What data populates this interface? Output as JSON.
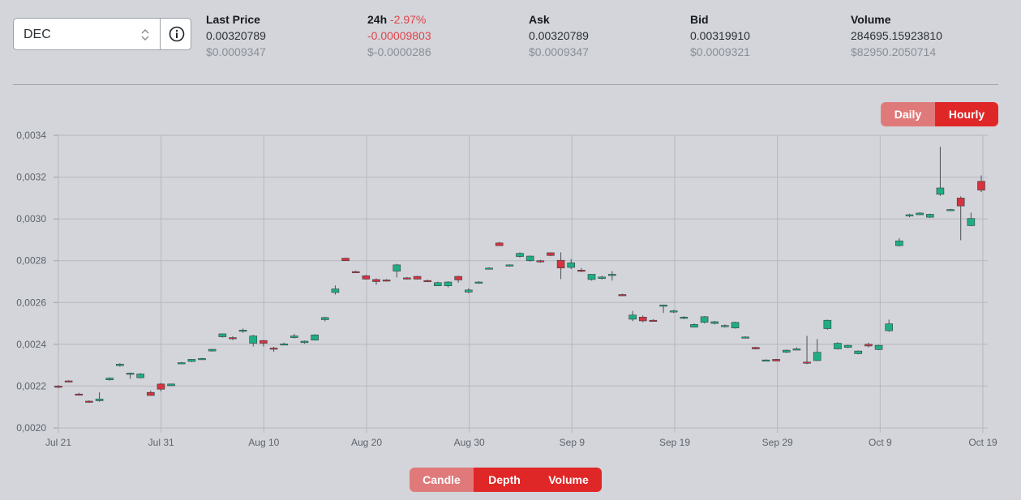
{
  "selector": {
    "value": "DEC"
  },
  "stats": {
    "last_price": {
      "label": "Last Price",
      "value": "0.00320789",
      "usd": "$0.0009347"
    },
    "change_24h": {
      "label": "24h",
      "pct": "-2.97%",
      "value": "-0.00009803",
      "usd": "$-0.0000286"
    },
    "ask": {
      "label": "Ask",
      "value": "0.00320789",
      "usd": "$0.0009347"
    },
    "bid": {
      "label": "Bid",
      "value": "0.00319910",
      "usd": "$0.0009321"
    },
    "volume": {
      "label": "Volume",
      "value": "284695.15923810",
      "usd": "$82950.2050714"
    }
  },
  "interval_toggle": {
    "daily": "Daily",
    "hourly": "Hourly"
  },
  "view_toggle": {
    "candle": "Candle",
    "depth": "Depth",
    "volume": "Volume"
  },
  "colors": {
    "up": "#1fae81",
    "down": "#d6323f",
    "accent": "#e02727",
    "accent_off": "#e07a7a"
  },
  "chart_data": {
    "type": "candlestick",
    "grid": true,
    "ylim": [
      0.002,
      0.0034
    ],
    "yticks": [
      "0,0020",
      "0,0022",
      "0,0024",
      "0,0026",
      "0,0028",
      "0,0030",
      "0,0032",
      "0,0034"
    ],
    "xticks": [
      "Jul 21",
      "Jul 31",
      "Aug 10",
      "Aug 20",
      "Aug 30",
      "Sep 9",
      "Sep 19",
      "Sep 29",
      "Oct 9",
      "Oct 19"
    ],
    "x_start": "Jul 21",
    "candles": [
      {
        "o": 0.0022,
        "h": 0.002205,
        "l": 0.00219,
        "c": 0.002195
      },
      {
        "o": 0.002225,
        "h": 0.002228,
        "l": 0.002218,
        "c": 0.00222
      },
      {
        "o": 0.002162,
        "h": 0.002168,
        "l": 0.002158,
        "c": 0.00216
      },
      {
        "o": 0.002128,
        "h": 0.002132,
        "l": 0.00212,
        "c": 0.002125
      },
      {
        "o": 0.00213,
        "h": 0.00217,
        "l": 0.002125,
        "c": 0.002138
      },
      {
        "o": 0.00223,
        "h": 0.002242,
        "l": 0.002226,
        "c": 0.002238
      },
      {
        "o": 0.002298,
        "h": 0.00231,
        "l": 0.002293,
        "c": 0.002305
      },
      {
        "o": 0.002258,
        "h": 0.002265,
        "l": 0.002235,
        "c": 0.002262
      },
      {
        "o": 0.00224,
        "h": 0.002262,
        "l": 0.002237,
        "c": 0.002258
      },
      {
        "o": 0.00217,
        "h": 0.002178,
        "l": 0.002155,
        "c": 0.002155
      },
      {
        "o": 0.00221,
        "h": 0.002215,
        "l": 0.002175,
        "c": 0.002185
      },
      {
        "o": 0.002202,
        "h": 0.002212,
        "l": 0.0022,
        "c": 0.00221
      },
      {
        "o": 0.00231,
        "h": 0.002315,
        "l": 0.002305,
        "c": 0.002312
      },
      {
        "o": 0.002318,
        "h": 0.00233,
        "l": 0.002315,
        "c": 0.002328
      },
      {
        "o": 0.002328,
        "h": 0.002335,
        "l": 0.002325,
        "c": 0.002332
      },
      {
        "o": 0.002368,
        "h": 0.002378,
        "l": 0.002365,
        "c": 0.002376
      },
      {
        "o": 0.002436,
        "h": 0.002452,
        "l": 0.002432,
        "c": 0.00245
      },
      {
        "o": 0.002432,
        "h": 0.002438,
        "l": 0.00242,
        "c": 0.002428
      },
      {
        "o": 0.002462,
        "h": 0.002475,
        "l": 0.002455,
        "c": 0.002468
      },
      {
        "o": 0.002405,
        "h": 0.002445,
        "l": 0.00239,
        "c": 0.00244
      },
      {
        "o": 0.002418,
        "h": 0.00242,
        "l": 0.00239,
        "c": 0.002405
      },
      {
        "o": 0.002382,
        "h": 0.002388,
        "l": 0.002365,
        "c": 0.002378
      },
      {
        "o": 0.0024,
        "h": 0.002408,
        "l": 0.002396,
        "c": 0.002402
      },
      {
        "o": 0.002432,
        "h": 0.00245,
        "l": 0.002428,
        "c": 0.00244
      },
      {
        "o": 0.002408,
        "h": 0.002418,
        "l": 0.002403,
        "c": 0.002415
      },
      {
        "o": 0.00242,
        "h": 0.002448,
        "l": 0.002418,
        "c": 0.002445
      },
      {
        "o": 0.002518,
        "h": 0.002532,
        "l": 0.00251,
        "c": 0.002528
      },
      {
        "o": 0.002648,
        "h": 0.002682,
        "l": 0.002638,
        "c": 0.002665
      },
      {
        "o": 0.002812,
        "h": 0.002815,
        "l": 0.0028,
        "c": 0.0028
      },
      {
        "o": 0.002748,
        "h": 0.002752,
        "l": 0.002742,
        "c": 0.002745
      },
      {
        "o": 0.002728,
        "h": 0.002732,
        "l": 0.00271,
        "c": 0.002712
      },
      {
        "o": 0.00271,
        "h": 0.002715,
        "l": 0.002685,
        "c": 0.0027
      },
      {
        "o": 0.002708,
        "h": 0.002712,
        "l": 0.0027,
        "c": 0.002705
      },
      {
        "o": 0.00275,
        "h": 0.002785,
        "l": 0.00272,
        "c": 0.00278
      },
      {
        "o": 0.002718,
        "h": 0.002722,
        "l": 0.00271,
        "c": 0.002712
      },
      {
        "o": 0.002725,
        "h": 0.002728,
        "l": 0.00271,
        "c": 0.002712
      },
      {
        "o": 0.002705,
        "h": 0.00271,
        "l": 0.0027,
        "c": 0.002702
      },
      {
        "o": 0.00268,
        "h": 0.0027,
        "l": 0.00268,
        "c": 0.002695
      },
      {
        "o": 0.00268,
        "h": 0.002702,
        "l": 0.002672,
        "c": 0.002698
      },
      {
        "o": 0.002725,
        "h": 0.002728,
        "l": 0.002695,
        "c": 0.002708
      },
      {
        "o": 0.00265,
        "h": 0.002668,
        "l": 0.002645,
        "c": 0.00266
      },
      {
        "o": 0.002695,
        "h": 0.002702,
        "l": 0.00269,
        "c": 0.002698
      },
      {
        "o": 0.00276,
        "h": 0.002768,
        "l": 0.002758,
        "c": 0.002765
      },
      {
        "o": 0.002885,
        "h": 0.00289,
        "l": 0.002872,
        "c": 0.002872
      },
      {
        "o": 0.002778,
        "h": 0.002782,
        "l": 0.002772,
        "c": 0.00278
      },
      {
        "o": 0.00282,
        "h": 0.00284,
        "l": 0.002815,
        "c": 0.002835
      },
      {
        "o": 0.0028,
        "h": 0.002825,
        "l": 0.002795,
        "c": 0.002822
      },
      {
        "o": 0.0028,
        "h": 0.002805,
        "l": 0.00279,
        "c": 0.002795
      },
      {
        "o": 0.002838,
        "h": 0.00284,
        "l": 0.002822,
        "c": 0.002825
      },
      {
        "o": 0.002802,
        "h": 0.00284,
        "l": 0.002712,
        "c": 0.002765
      },
      {
        "o": 0.002768,
        "h": 0.002808,
        "l": 0.00276,
        "c": 0.00279
      },
      {
        "o": 0.002755,
        "h": 0.002765,
        "l": 0.002745,
        "c": 0.00275
      },
      {
        "o": 0.00271,
        "h": 0.002735,
        "l": 0.002705,
        "c": 0.002735
      },
      {
        "o": 0.002715,
        "h": 0.002728,
        "l": 0.00271,
        "c": 0.002722
      },
      {
        "o": 0.00273,
        "h": 0.00275,
        "l": 0.002705,
        "c": 0.002735
      },
      {
        "o": 0.002638,
        "h": 0.002642,
        "l": 0.00263,
        "c": 0.002635
      },
      {
        "o": 0.00252,
        "h": 0.00256,
        "l": 0.00251,
        "c": 0.00254
      },
      {
        "o": 0.00253,
        "h": 0.002538,
        "l": 0.002505,
        "c": 0.002512
      },
      {
        "o": 0.002515,
        "h": 0.00252,
        "l": 0.00251,
        "c": 0.002512
      },
      {
        "o": 0.002582,
        "h": 0.00259,
        "l": 0.00255,
        "c": 0.002588
      },
      {
        "o": 0.002555,
        "h": 0.002565,
        "l": 0.00255,
        "c": 0.00256
      },
      {
        "o": 0.002528,
        "h": 0.002535,
        "l": 0.00252,
        "c": 0.00253
      },
      {
        "o": 0.002482,
        "h": 0.0025,
        "l": 0.00248,
        "c": 0.002495
      },
      {
        "o": 0.002505,
        "h": 0.002535,
        "l": 0.0025,
        "c": 0.002532
      },
      {
        "o": 0.0025,
        "h": 0.002512,
        "l": 0.002495,
        "c": 0.002508
      },
      {
        "o": 0.002485,
        "h": 0.002495,
        "l": 0.00248,
        "c": 0.00249
      },
      {
        "o": 0.002478,
        "h": 0.002508,
        "l": 0.002475,
        "c": 0.002505
      },
      {
        "o": 0.002432,
        "h": 0.002438,
        "l": 0.002428,
        "c": 0.002435
      },
      {
        "o": 0.002385,
        "h": 0.002388,
        "l": 0.002375,
        "c": 0.002378
      },
      {
        "o": 0.002325,
        "h": 0.002328,
        "l": 0.00232,
        "c": 0.002325
      },
      {
        "o": 0.002328,
        "h": 0.00233,
        "l": 0.00232,
        "c": 0.00232
      },
      {
        "o": 0.002362,
        "h": 0.002375,
        "l": 0.002358,
        "c": 0.002372
      },
      {
        "o": 0.002378,
        "h": 0.002385,
        "l": 0.002372,
        "c": 0.002378
      },
      {
        "o": 0.002315,
        "h": 0.00244,
        "l": 0.002305,
        "c": 0.00231
      },
      {
        "o": 0.002322,
        "h": 0.002425,
        "l": 0.00232,
        "c": 0.002362
      },
      {
        "o": 0.002475,
        "h": 0.002518,
        "l": 0.00247,
        "c": 0.002515
      },
      {
        "o": 0.002378,
        "h": 0.00241,
        "l": 0.002375,
        "c": 0.002405
      },
      {
        "o": 0.002385,
        "h": 0.002398,
        "l": 0.002382,
        "c": 0.002395
      },
      {
        "o": 0.002355,
        "h": 0.00237,
        "l": 0.002352,
        "c": 0.002368
      },
      {
        "o": 0.0024,
        "h": 0.002408,
        "l": 0.002385,
        "c": 0.002392
      },
      {
        "o": 0.002375,
        "h": 0.002398,
        "l": 0.002372,
        "c": 0.002395
      },
      {
        "o": 0.002465,
        "h": 0.002518,
        "l": 0.00246,
        "c": 0.002498
      },
      {
        "o": 0.002872,
        "h": 0.002908,
        "l": 0.002868,
        "c": 0.002895
      },
      {
        "o": 0.003015,
        "h": 0.003025,
        "l": 0.003008,
        "c": 0.00302
      },
      {
        "o": 0.00302,
        "h": 0.003032,
        "l": 0.003018,
        "c": 0.003028
      },
      {
        "o": 0.003008,
        "h": 0.003025,
        "l": 0.003005,
        "c": 0.003022
      },
      {
        "o": 0.003118,
        "h": 0.003345,
        "l": 0.00311,
        "c": 0.003148
      },
      {
        "o": 0.003042,
        "h": 0.003048,
        "l": 0.003038,
        "c": 0.003045
      },
      {
        "o": 0.0031,
        "h": 0.003108,
        "l": 0.002898,
        "c": 0.003062
      },
      {
        "o": 0.002968,
        "h": 0.00303,
        "l": 0.002965,
        "c": 0.003002
      },
      {
        "o": 0.00318,
        "h": 0.003208,
        "l": 0.003128,
        "c": 0.003138
      }
    ]
  }
}
